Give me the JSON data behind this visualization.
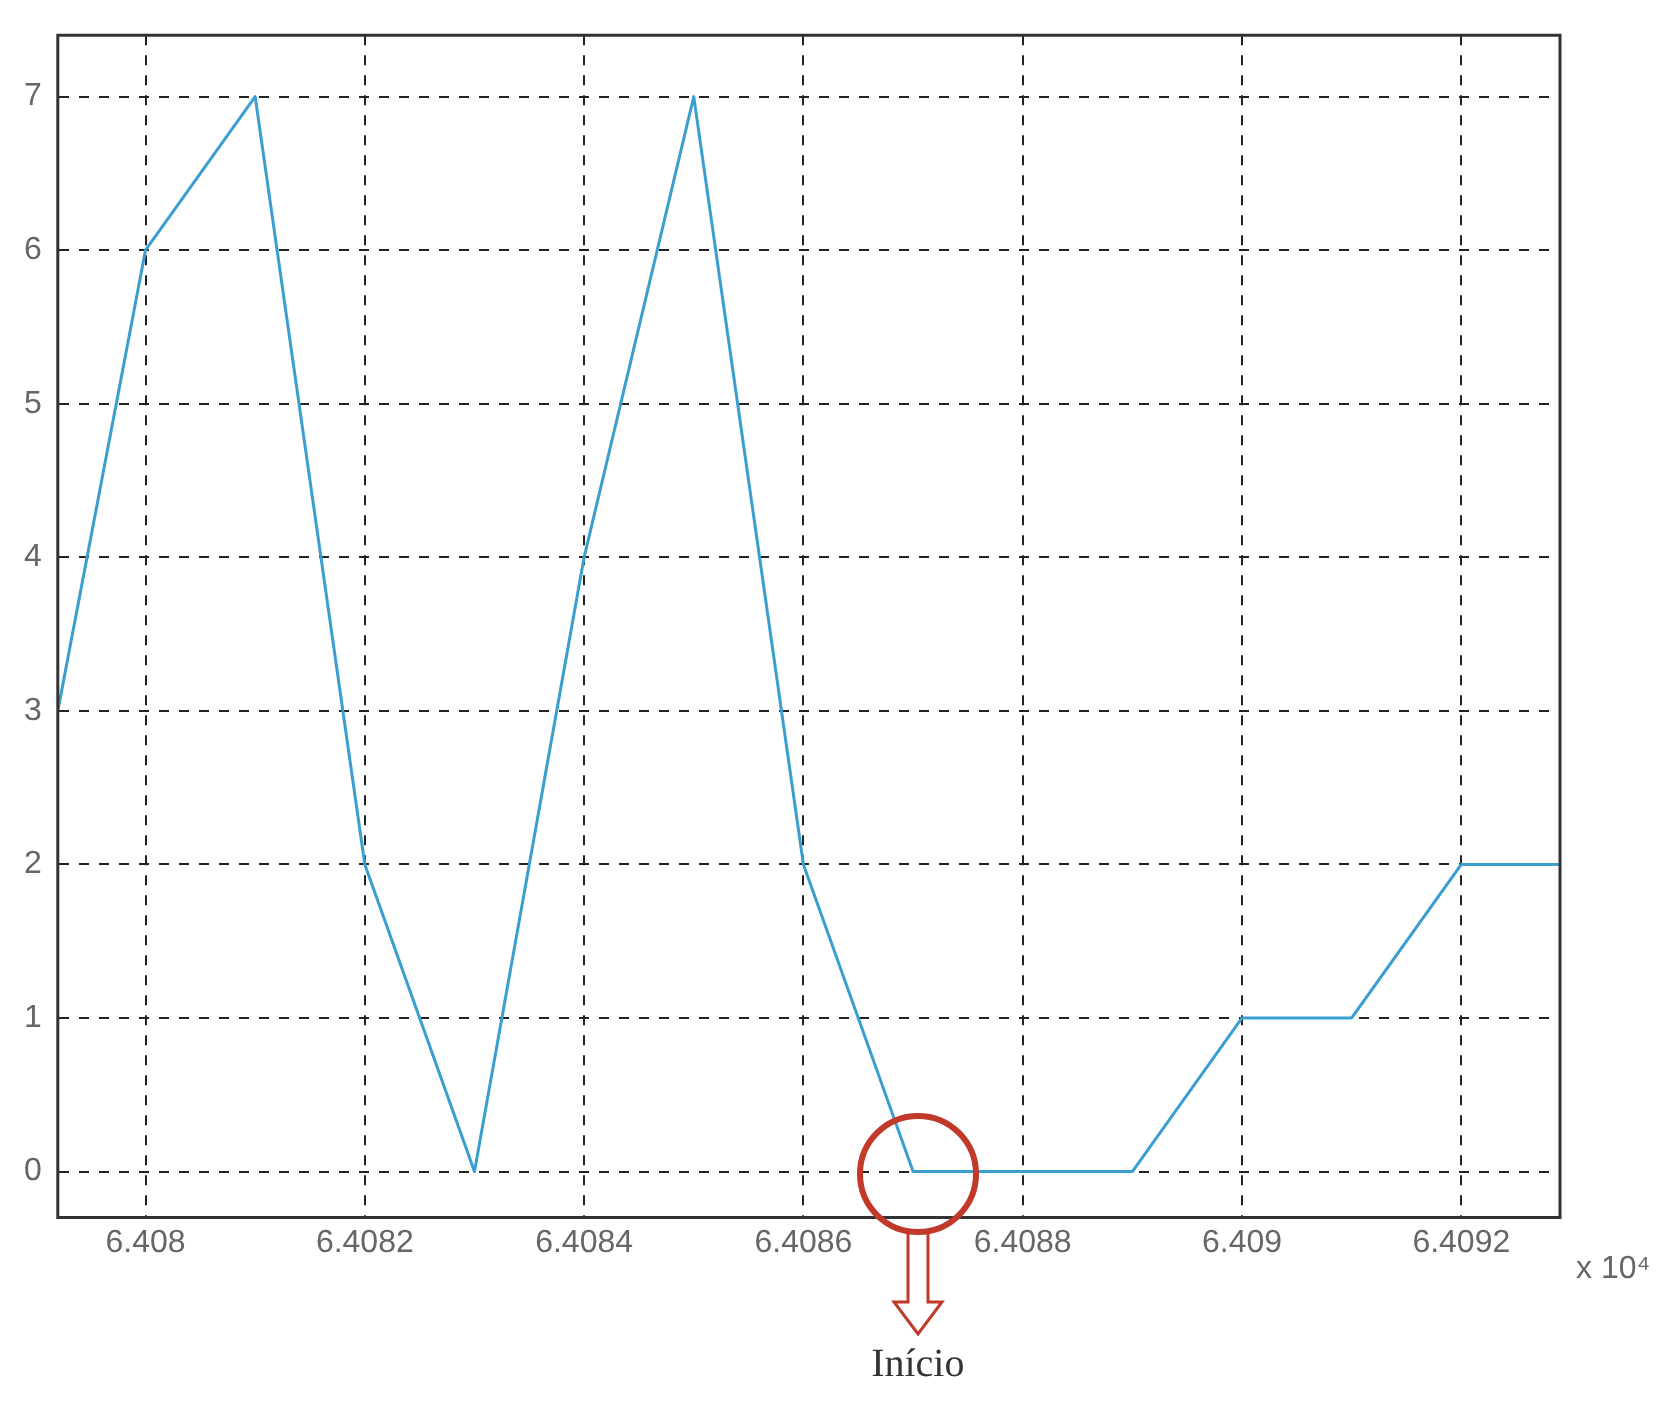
{
  "chart_data": {
    "type": "line",
    "x": [
      6.40792,
      6.408,
      6.4081,
      6.4082,
      6.4083,
      6.4084,
      6.4085,
      6.4086,
      6.4087,
      6.4088,
      6.4089,
      6.409,
      6.4091,
      6.4092,
      6.40929
    ],
    "values": [
      3,
      6,
      7,
      2,
      0,
      4,
      7,
      2,
      0,
      0,
      0,
      1,
      1,
      2,
      2
    ],
    "color": "#3a9fd0",
    "xlim": [
      6.40792,
      6.40929
    ],
    "xticks": [
      6.408,
      6.4082,
      6.4084,
      6.4086,
      6.4088,
      6.409,
      6.4092
    ],
    "ylim": [
      -0.3,
      7.4
    ],
    "yticks": [
      0,
      1,
      2,
      3,
      4,
      5,
      6,
      7
    ],
    "grid": true,
    "marker": "none",
    "line_style": "solid",
    "annotations": [
      "x 10⁴",
      "Início"
    ]
  }
}
